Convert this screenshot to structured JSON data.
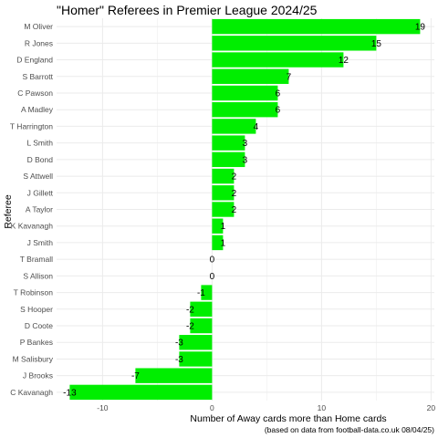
{
  "chart_data": {
    "type": "bar",
    "orientation": "horizontal",
    "title": "\"Homer\" Referees in Premier League 2024/25",
    "xlabel": "Number of Away cards more than Home cards",
    "ylabel": "Referee",
    "caption": "(based on data from football-data.co.uk 08/04/25)",
    "categories": [
      "M Oliver",
      "R Jones",
      "D England",
      "S Barrott",
      "C Pawson",
      "A Madley",
      "T Harrington",
      "L Smith",
      "D Bond",
      "S Attwell",
      "J Gillett",
      "A Taylor",
      "K Kavanagh",
      "J Smith",
      "T Bramall",
      "S Allison",
      "T Robinson",
      "S Hooper",
      "D Coote",
      "P Bankes",
      "M Salisbury",
      "J Brooks",
      "C Kavanagh"
    ],
    "values": [
      19,
      15,
      12,
      7,
      6,
      6,
      4,
      3,
      3,
      2,
      2,
      2,
      1,
      1,
      0,
      0,
      -1,
      -2,
      -2,
      -3,
      -3,
      -7,
      -13
    ],
    "xlim": [
      -14.2,
      20.3
    ],
    "xticks": [
      -10,
      0,
      10,
      20
    ],
    "grid": true,
    "legend": "none",
    "bar_color": "#00ee00",
    "grid_color": "#ebebeb"
  }
}
